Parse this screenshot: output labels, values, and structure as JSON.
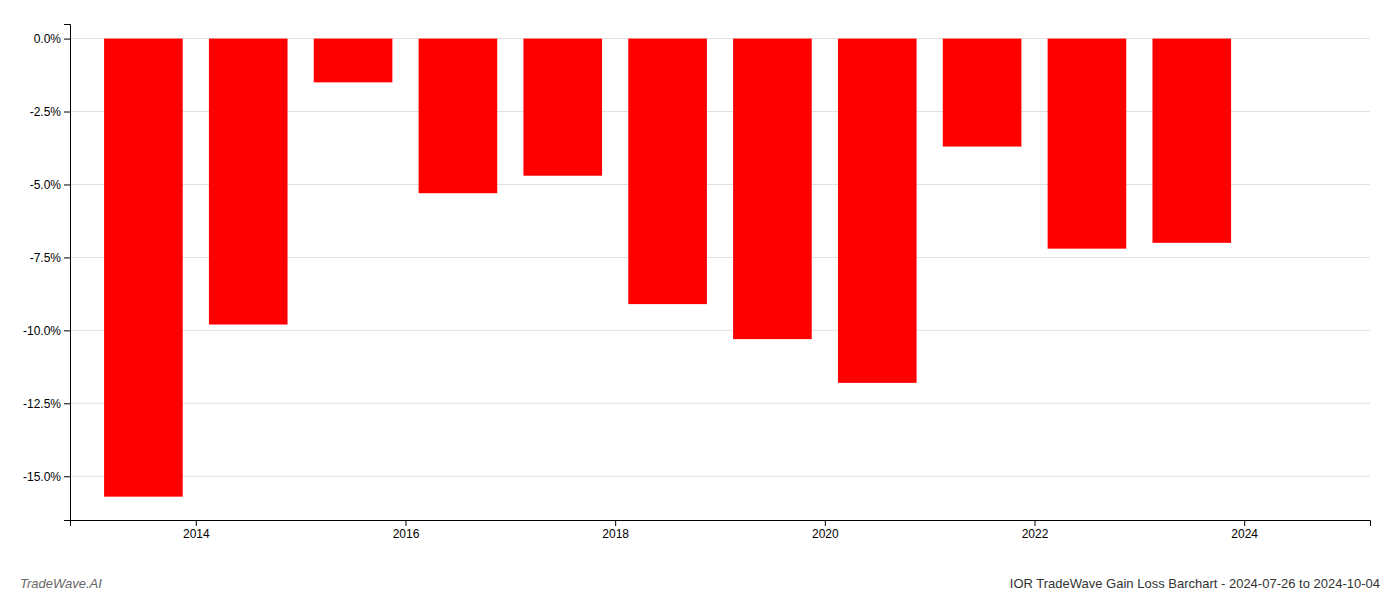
{
  "chart_data": {
    "type": "bar",
    "title": "IOR TradeWave Gain Loss Barchart - 2024-07-26 to 2024-10-04",
    "annotations": [
      "TradeWave.AI"
    ],
    "x": [
      2013.5,
      2014.5,
      2015.5,
      2016.5,
      2017.5,
      2018.5,
      2019.5,
      2020.5,
      2021.5,
      2022.5,
      2023.5
    ],
    "values": [
      -15.7,
      -9.8,
      -1.5,
      -5.3,
      -4.7,
      -9.1,
      -10.3,
      -11.8,
      -3.7,
      -7.2,
      -7.0
    ],
    "color": "#ff0000",
    "xlim": [
      2012.8,
      2025.2
    ],
    "xticks": [
      2014,
      2016,
      2018,
      2020,
      2022,
      2024
    ],
    "ylim": [
      -16.5,
      0.5
    ],
    "yticks": [
      {
        "value": 0.0,
        "label": "0.0%"
      },
      {
        "value": -2.5,
        "label": "-2.5%"
      },
      {
        "value": -5.0,
        "label": "-5.0%"
      },
      {
        "value": -7.5,
        "label": "-7.5%"
      },
      {
        "value": -10.0,
        "label": "-10.0%"
      },
      {
        "value": -12.5,
        "label": "-12.5%"
      },
      {
        "value": -15.0,
        "label": "-15.0%"
      }
    ],
    "grid": true
  }
}
